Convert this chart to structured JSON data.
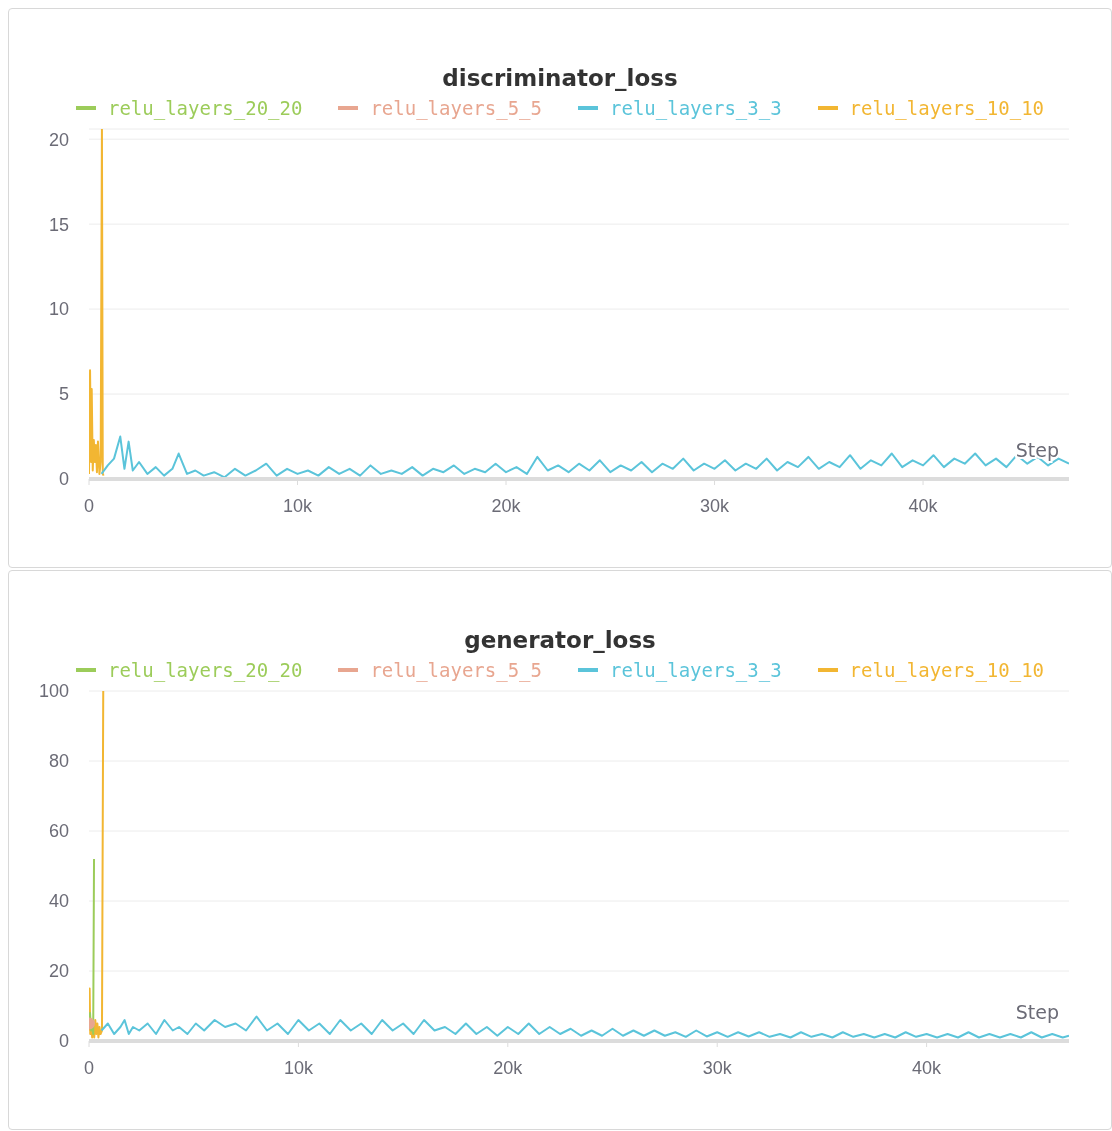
{
  "chart_data": [
    {
      "type": "line",
      "title": "discriminator_loss",
      "xlabel": "Step",
      "legend": "top",
      "grid": "y",
      "xlim": [
        0,
        47000
      ],
      "xticks": [
        0,
        {
          "value": 10000,
          "label": "10k"
        },
        {
          "value": 20000,
          "label": "20k"
        },
        {
          "value": 30000,
          "label": "30k"
        },
        {
          "value": 40000,
          "label": "40k"
        }
      ],
      "ylim": [
        0,
        20.6
      ],
      "yticks": [
        0,
        5,
        10,
        15,
        20
      ],
      "series": [
        {
          "name": "relu_layers_20_20",
          "color": "#9ccc5a"
        },
        {
          "name": "relu_layers_5_5",
          "color": "#e8a690"
        },
        {
          "name": "relu_layers_3_3",
          "color": "#5bc4da",
          "x": [
            600,
            900,
            1200,
            1500,
            1700,
            1900,
            2100,
            2400,
            2800,
            3200,
            3600,
            4000,
            4300,
            4700,
            5100,
            5500,
            6000,
            6500,
            7000,
            7500,
            8000,
            8500,
            9000,
            9500,
            10000,
            10500,
            11000,
            11500,
            12000,
            12500,
            13000,
            13500,
            14000,
            14500,
            15000,
            15500,
            16000,
            16500,
            17000,
            17500,
            18000,
            18500,
            19000,
            19500,
            20000,
            20500,
            21000,
            21500,
            22000,
            22500,
            23000,
            23500,
            24000,
            24500,
            25000,
            25500,
            26000,
            26500,
            27000,
            27500,
            28000,
            28500,
            29000,
            29500,
            30000,
            30500,
            31000,
            31500,
            32000,
            32500,
            33000,
            33500,
            34000,
            34500,
            35000,
            35500,
            36000,
            36500,
            37000,
            37500,
            38000,
            38500,
            39000,
            39500,
            40000,
            40500,
            41000,
            41500,
            42000,
            42500,
            43000,
            43500,
            44000,
            44500,
            45000,
            45500,
            46000,
            46500,
            47000
          ],
          "values": [
            0.3,
            0.8,
            1.2,
            2.5,
            0.6,
            2.2,
            0.5,
            1.0,
            0.3,
            0.7,
            0.2,
            0.6,
            1.5,
            0.3,
            0.5,
            0.2,
            0.4,
            0.1,
            0.6,
            0.2,
            0.5,
            0.9,
            0.2,
            0.6,
            0.3,
            0.5,
            0.2,
            0.7,
            0.3,
            0.6,
            0.2,
            0.8,
            0.3,
            0.5,
            0.3,
            0.7,
            0.2,
            0.6,
            0.4,
            0.8,
            0.3,
            0.6,
            0.4,
            0.9,
            0.4,
            0.7,
            0.3,
            1.3,
            0.5,
            0.8,
            0.4,
            0.9,
            0.5,
            1.1,
            0.4,
            0.8,
            0.5,
            1.0,
            0.4,
            0.9,
            0.6,
            1.2,
            0.5,
            0.9,
            0.6,
            1.1,
            0.5,
            0.9,
            0.6,
            1.2,
            0.5,
            1.0,
            0.7,
            1.3,
            0.6,
            1.0,
            0.7,
            1.4,
            0.6,
            1.1,
            0.8,
            1.5,
            0.7,
            1.1,
            0.8,
            1.4,
            0.7,
            1.2,
            0.9,
            1.5,
            0.8,
            1.2,
            0.7,
            1.4,
            0.9,
            1.3,
            0.8,
            1.2,
            0.9
          ]
        },
        {
          "name": "relu_layers_10_10",
          "color": "#f2b632",
          "x": [
            0,
            50,
            100,
            130,
            180,
            230,
            280,
            330,
            380,
            430,
            500,
            560,
            620,
            660,
            700
          ],
          "values": [
            0.3,
            6.4,
            1,
            5.3,
            0.5,
            2.3,
            1,
            2,
            0.4,
            2.2,
            0.3,
            1,
            20.6,
            0.3,
            0.2
          ]
        }
      ]
    },
    {
      "type": "line",
      "title": "generator_loss",
      "xlabel": "Step",
      "legend": "top",
      "grid": "y",
      "xlim": [
        0,
        46800
      ],
      "xticks": [
        0,
        {
          "value": 10000,
          "label": "10k"
        },
        {
          "value": 20000,
          "label": "20k"
        },
        {
          "value": 30000,
          "label": "30k"
        },
        {
          "value": 40000,
          "label": "40k"
        }
      ],
      "ylim": [
        0,
        100
      ],
      "yticks": [
        0,
        20,
        40,
        60,
        80,
        100
      ],
      "series": [
        {
          "name": "relu_layers_20_20",
          "color": "#9ccc5a",
          "x": [
            0,
            50,
            100,
            150,
            200,
            240
          ],
          "values": [
            4,
            8,
            3,
            5,
            2,
            52
          ]
        },
        {
          "name": "relu_layers_5_5",
          "color": "#e8a690",
          "marker": "circle",
          "x": [
            0
          ],
          "values": [
            5
          ]
        },
        {
          "name": "relu_layers_3_3",
          "color": "#5bc4da",
          "x": [
            600,
            900,
            1200,
            1500,
            1700,
            1900,
            2100,
            2400,
            2800,
            3200,
            3600,
            4000,
            4300,
            4700,
            5100,
            5500,
            6000,
            6500,
            7000,
            7500,
            8000,
            8500,
            9000,
            9500,
            10000,
            10500,
            11000,
            11500,
            12000,
            12500,
            13000,
            13500,
            14000,
            14500,
            15000,
            15500,
            16000,
            16500,
            17000,
            17500,
            18000,
            18500,
            19000,
            19500,
            20000,
            20500,
            21000,
            21500,
            22000,
            22500,
            23000,
            23500,
            24000,
            24500,
            25000,
            25500,
            26000,
            26500,
            27000,
            27500,
            28000,
            28500,
            29000,
            29500,
            30000,
            30500,
            31000,
            31500,
            32000,
            32500,
            33000,
            33500,
            34000,
            34500,
            35000,
            35500,
            36000,
            36500,
            37000,
            37500,
            38000,
            38500,
            39000,
            39500,
            40000,
            40500,
            41000,
            41500,
            42000,
            42500,
            43000,
            43500,
            44000,
            44500,
            45000,
            45500,
            46000,
            46500,
            46800
          ],
          "values": [
            3,
            5,
            2,
            4,
            6,
            2,
            4,
            3,
            5,
            2,
            6,
            3,
            4,
            2,
            5,
            3,
            6,
            4,
            5,
            3,
            7,
            3,
            5,
            2,
            6,
            3,
            5,
            2,
            6,
            3,
            5,
            2,
            6,
            3,
            5,
            2,
            6,
            3,
            4,
            2,
            5,
            2,
            4,
            1.5,
            4,
            2,
            5,
            2,
            4,
            2,
            3.5,
            1.5,
            3,
            1.5,
            3.5,
            1.5,
            3,
            1.5,
            3,
            1.5,
            2.5,
            1.2,
            3,
            1.3,
            2.5,
            1.2,
            2.5,
            1.3,
            2.5,
            1.2,
            2,
            1,
            2.5,
            1.2,
            2,
            1,
            2.5,
            1.2,
            2,
            1,
            2,
            1,
            2.5,
            1.2,
            2,
            1,
            2,
            1,
            2.5,
            1,
            2,
            1,
            2,
            1,
            2.5,
            1,
            2,
            1,
            1.5
          ]
        },
        {
          "name": "relu_layers_10_10",
          "color": "#f2b632",
          "x": [
            0,
            30,
            60,
            100,
            150,
            200,
            250,
            300,
            350,
            400,
            450,
            500,
            550,
            620,
            680
          ],
          "values": [
            3,
            15,
            2,
            5,
            1,
            4,
            1,
            6,
            2,
            5,
            1,
            4,
            2,
            3,
            100
          ]
        }
      ]
    }
  ]
}
